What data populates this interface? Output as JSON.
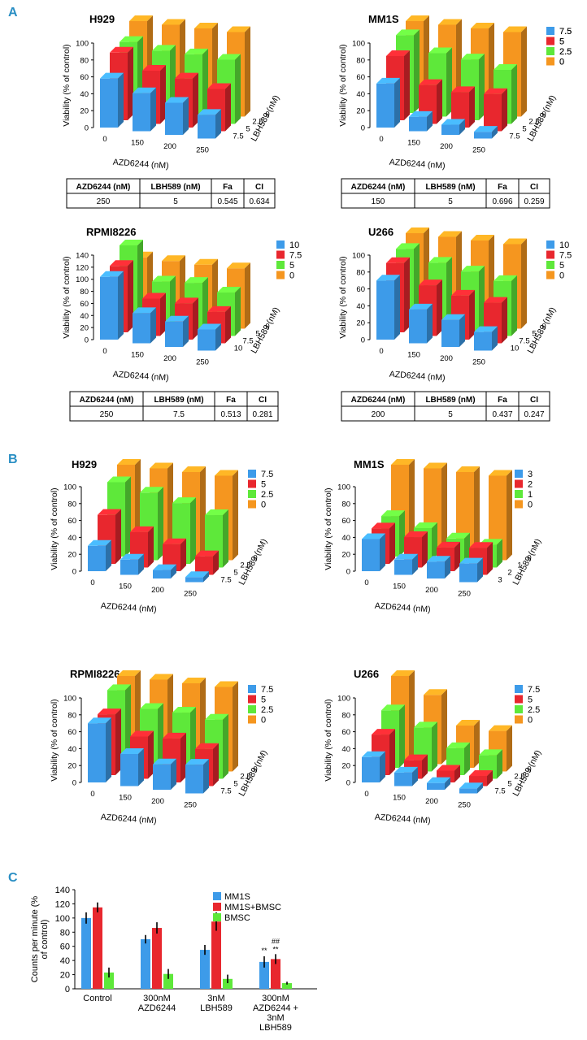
{
  "colors": {
    "blue": "#3d9be9",
    "red": "#e8272e",
    "green": "#5ee83a",
    "orange": "#f5961f",
    "section_label": "#2a8fc4"
  },
  "sections": {
    "a": "A",
    "b": "B",
    "c": "C"
  },
  "panels": [
    {
      "section": "A",
      "title": "H929",
      "yaxis_label": "Viability (% of control)",
      "yticks": [
        "0",
        "20",
        "40",
        "60",
        "80",
        "100"
      ],
      "ymax": 100,
      "xaxis_label": "AZD6244 (nM)",
      "xticks": [
        "0",
        "150",
        "200",
        "250"
      ],
      "zaxis_label": "LBH589 (nM)",
      "zticks": [
        "0",
        "2.5",
        "5",
        "7.5"
      ],
      "legend": [
        "7.5",
        "5",
        "2.5",
        "0"
      ],
      "values": [
        [
          100,
          100,
          100,
          100
        ],
        [
          84,
          78,
          78,
          76
        ],
        [
          80,
          63,
          58,
          50
        ],
        [
          58,
          45,
          38,
          28
        ]
      ],
      "table": {
        "headers": [
          "AZD6244 (nM)",
          "LBH589 (nM)",
          "Fa",
          "CI"
        ],
        "row": [
          "250",
          "5",
          "0.545",
          "0.634"
        ]
      }
    },
    {
      "section": "A",
      "title": "MM1S",
      "yaxis_label": "Viability (% of control)",
      "yticks": [
        "0",
        "20",
        "40",
        "60",
        "80",
        "100"
      ],
      "ymax": 100,
      "xaxis_label": "AZD6244 (nM)",
      "xticks": [
        "0",
        "150",
        "200",
        "250"
      ],
      "zaxis_label": "LBH589 (nM)",
      "zticks": [
        "0",
        "2.5",
        "5",
        "7.5"
      ],
      "legend": [
        "7.5",
        "5",
        "2.5",
        "0"
      ],
      "values": [
        [
          100,
          100,
          100,
          100
        ],
        [
          92,
          75,
          72,
          64
        ],
        [
          76,
          46,
          42,
          44
        ],
        [
          52,
          17,
          12,
          8
        ]
      ],
      "table": {
        "headers": [
          "AZD6244 (nM)",
          "LBH589 (nM)",
          "Fa",
          "CI"
        ],
        "row": [
          "150",
          "5",
          "0.696",
          "0.259"
        ]
      }
    },
    {
      "section": "A",
      "title": "RPMI8226",
      "yaxis_label": "Viability (% of control)",
      "yticks": [
        "0",
        "20",
        "40",
        "60",
        "80",
        "100",
        "120",
        "140"
      ],
      "ymax": 140,
      "xaxis_label": "AZD6244 (nM)",
      "xticks": [
        "0",
        "150",
        "200",
        "250"
      ],
      "zaxis_label": "LBH589 (nM)",
      "zticks": [
        "0",
        "5",
        "7.5",
        "10"
      ],
      "legend": [
        "10",
        "7.5",
        "5",
        "0"
      ],
      "values": [
        [
          100,
          100,
          100,
          100
        ],
        [
          132,
          78,
          82,
          72
        ],
        [
          110,
          62,
          60,
          52
        ],
        [
          104,
          50,
          42,
          35
        ]
      ],
      "table": {
        "headers": [
          "AZD6244 (nM)",
          "LBH589 (nM)",
          "Fa",
          "CI"
        ],
        "row": [
          "250",
          "7.5",
          "0.513",
          "0.281"
        ]
      }
    },
    {
      "section": "A",
      "title": "U266",
      "yaxis_label": "Viability (% of control)",
      "yticks": [
        "0",
        "20",
        "40",
        "60",
        "80",
        "100"
      ],
      "ymax": 100,
      "xaxis_label": "AZD6244 (nM)",
      "xticks": [
        "0",
        "150",
        "200",
        "250"
      ],
      "zaxis_label": "LBH589 (nM)",
      "zticks": [
        "0",
        "5",
        "7.5",
        "10"
      ],
      "legend": [
        "10",
        "7.5",
        "5",
        "0"
      ],
      "values": [
        [
          100,
          100,
          100,
          100
        ],
        [
          90,
          78,
          72,
          65
        ],
        [
          82,
          60,
          52,
          48
        ],
        [
          70,
          40,
          32,
          22
        ]
      ],
      "table": {
        "headers": [
          "AZD6244 (nM)",
          "LBH589 (nM)",
          "Fa",
          "CI"
        ],
        "row": [
          "200",
          "5",
          "0.437",
          "0.247"
        ]
      }
    },
    {
      "section": "B",
      "title": "H929",
      "yaxis_label": "Viability (% of control)",
      "yticks": [
        "0",
        "20",
        "40",
        "60",
        "80",
        "100"
      ],
      "ymax": 100,
      "xaxis_label": "AZD6244 (nM)",
      "xticks": [
        "0",
        "150",
        "200",
        "250"
      ],
      "zaxis_label": "LBH589 (nM)",
      "zticks": [
        "0",
        "2.5",
        "5",
        "7.5"
      ],
      "legend": [
        "7.5",
        "5",
        "2.5",
        "0"
      ],
      "values": [
        [
          100,
          100,
          100,
          100
        ],
        [
          88,
          80,
          72,
          62
        ],
        [
          58,
          42,
          32,
          22
        ],
        [
          30,
          18,
          10,
          6
        ]
      ]
    },
    {
      "section": "B",
      "title": "MM1S",
      "yaxis_label": "Viability (% of control)",
      "yticks": [
        "0",
        "20",
        "40",
        "60",
        "80",
        "100"
      ],
      "ymax": 100,
      "xaxis_label": "AZD6244 (nM)",
      "xticks": [
        "0",
        "150",
        "200",
        "250"
      ],
      "zaxis_label": "LBH589 (nM)",
      "zticks": [
        "0",
        "1",
        "2",
        "3"
      ],
      "legend": [
        "3",
        "2",
        "1",
        "0"
      ],
      "values": [
        [
          100,
          100,
          100,
          100
        ],
        [
          48,
          38,
          30,
          27
        ],
        [
          42,
          36,
          28,
          32
        ],
        [
          38,
          18,
          20,
          22
        ]
      ]
    },
    {
      "section": "B",
      "title": "RPMI8226",
      "yaxis_label": "Viability (% of control)",
      "yticks": [
        "0",
        "20",
        "40",
        "60",
        "80",
        "100"
      ],
      "ymax": 100,
      "xaxis_label": "AZD6244 (nM)",
      "xticks": [
        "0",
        "150",
        "200",
        "250"
      ],
      "zaxis_label": "LBH589 (nM)",
      "zticks": [
        "0",
        "2.5",
        "5",
        "7.5"
      ],
      "legend": [
        "7.5",
        "5",
        "2.5",
        "0"
      ],
      "values": [
        [
          100,
          100,
          100,
          100
        ],
        [
          92,
          74,
          74,
          70
        ],
        [
          72,
          50,
          52,
          44
        ],
        [
          70,
          38,
          30,
          34
        ]
      ]
    },
    {
      "section": "B",
      "title": "U266",
      "yaxis_label": "Viability (% of control)",
      "yticks": [
        "0",
        "20",
        "40",
        "60",
        "80",
        "100"
      ],
      "ymax": 100,
      "xaxis_label": "AZD6244 (nM)",
      "xticks": [
        "0",
        "150",
        "200",
        "250"
      ],
      "zaxis_label": "LBH589 (nM)",
      "zticks": [
        "0",
        "2.5",
        "5",
        "7.5"
      ],
      "legend": [
        "7.5",
        "5",
        "2.5",
        "0"
      ],
      "values": [
        [
          100,
          82,
          50,
          48
        ],
        [
          68,
          52,
          32,
          28
        ],
        [
          48,
          22,
          14,
          12
        ],
        [
          30,
          16,
          8,
          6
        ]
      ]
    }
  ],
  "chart_data": {
    "type": "bar",
    "title": "",
    "ylabel": "Counts per minute (% of control)",
    "ylim": [
      0,
      140
    ],
    "yticks": [
      "0",
      "20",
      "40",
      "60",
      "80",
      "100",
      "120",
      "140"
    ],
    "categories": [
      "Control",
      "300nM AZD6244",
      "3nM LBH589",
      "300nM AZD6244 + 3nM LBH589"
    ],
    "category_lines": [
      [
        "Control"
      ],
      [
        "300nM",
        "AZD6244"
      ],
      [
        "3nM",
        "LBH589"
      ],
      [
        "300nM",
        "AZD6244 +",
        "3nM",
        "LBH589"
      ]
    ],
    "series": [
      {
        "name": "MM1S",
        "values": [
          100,
          70,
          55,
          38
        ],
        "errors": [
          8,
          6,
          7,
          8
        ]
      },
      {
        "name": "MM1S+BMSC",
        "values": [
          115,
          86,
          95,
          42
        ],
        "errors": [
          7,
          8,
          13,
          7
        ]
      },
      {
        "name": "BMSC",
        "values": [
          23,
          21,
          14,
          8
        ],
        "errors": [
          7,
          7,
          6,
          2
        ]
      }
    ],
    "annotations": [
      {
        "category": 3,
        "series": 0,
        "text": "**"
      },
      {
        "category": 3,
        "series": 1,
        "text": "**"
      },
      {
        "category": 3,
        "series": 1,
        "text": "##"
      }
    ]
  }
}
